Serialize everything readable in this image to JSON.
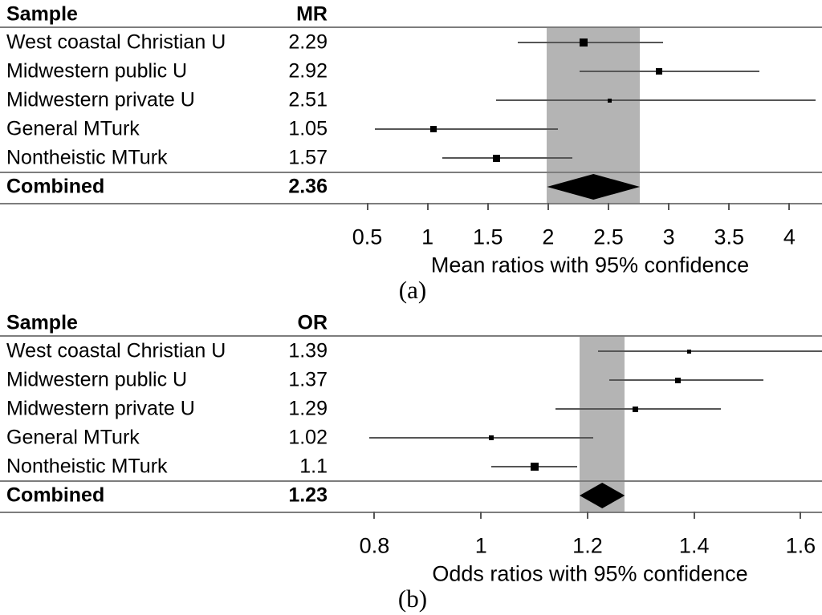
{
  "colors": {
    "background": "#ffffff",
    "text": "#000000",
    "band": "#b4b4b4",
    "marker": "#000000",
    "ci_line": "#565656",
    "grid_line": "#7d7d7d"
  },
  "chart_data": [
    {
      "type": "forest",
      "panel_label": "(a)",
      "col_headers": {
        "sample": "Sample",
        "value": "MR"
      },
      "xlabel": "Mean ratios with 95% confidence",
      "xlim": [
        0.25,
        4.27
      ],
      "tick_values": [
        0.5,
        1,
        1.5,
        2,
        2.5,
        3,
        3.5,
        4
      ],
      "tick_labels": [
        "0.5",
        "1",
        "1.5",
        "2",
        "2.5",
        "3",
        "3.5",
        "4"
      ],
      "band_ci": [
        1.99,
        2.76
      ],
      "rows": [
        {
          "label": "West coastal Christian U",
          "value_label": "2.29",
          "est": 2.29,
          "ci": [
            1.75,
            2.95
          ],
          "marker_size": 10
        },
        {
          "label": "Midwestern public U",
          "value_label": "2.92",
          "est": 2.92,
          "ci": [
            2.26,
            3.75
          ],
          "marker_size": 8
        },
        {
          "label": "Midwestern private U",
          "value_label": "2.51",
          "est": 2.51,
          "ci": [
            1.57,
            4.22
          ],
          "marker_size": 5
        },
        {
          "label": "General MTurk",
          "value_label": "1.05",
          "est": 1.05,
          "ci": [
            0.56,
            2.08
          ],
          "marker_size": 8
        },
        {
          "label": "Nontheistic MTurk",
          "value_label": "1.57",
          "est": 1.57,
          "ci": [
            1.12,
            2.2
          ],
          "marker_size": 9
        }
      ],
      "combined": {
        "label": "Combined",
        "value_label": "2.36",
        "est": 2.36,
        "ci": [
          1.99,
          2.76
        ]
      }
    },
    {
      "type": "forest",
      "panel_label": "(b)",
      "col_headers": {
        "sample": "Sample",
        "value": "OR"
      },
      "xlabel": "Odds ratios with 95% confidence",
      "xlim": [
        0.73,
        1.64
      ],
      "tick_values": [
        0.8,
        1,
        1.2,
        1.4,
        1.6
      ],
      "tick_labels": [
        "0.8",
        "1",
        "1.2",
        "1.4",
        "1.6"
      ],
      "band_ci": [
        1.185,
        1.27
      ],
      "rows": [
        {
          "label": "West coastal Christian U",
          "value_label": "1.39",
          "est": 1.39,
          "ci": [
            1.22,
            1.64
          ],
          "marker_size": 5
        },
        {
          "label": "Midwestern public U",
          "value_label": "1.37",
          "est": 1.37,
          "ci": [
            1.24,
            1.53
          ],
          "marker_size": 7
        },
        {
          "label": "Midwestern private U",
          "value_label": "1.29",
          "est": 1.29,
          "ci": [
            1.14,
            1.45
          ],
          "marker_size": 7
        },
        {
          "label": "General MTurk",
          "value_label": "1.02",
          "est": 1.02,
          "ci": [
            0.79,
            1.21
          ],
          "marker_size": 6
        },
        {
          "label": "Nontheistic MTurk",
          "value_label": "1.1",
          "est": 1.1,
          "ci": [
            1.02,
            1.18
          ],
          "marker_size": 10
        }
      ],
      "combined": {
        "label": "Combined",
        "value_label": "1.23",
        "est": 1.23,
        "ci": [
          1.185,
          1.27
        ]
      }
    }
  ]
}
